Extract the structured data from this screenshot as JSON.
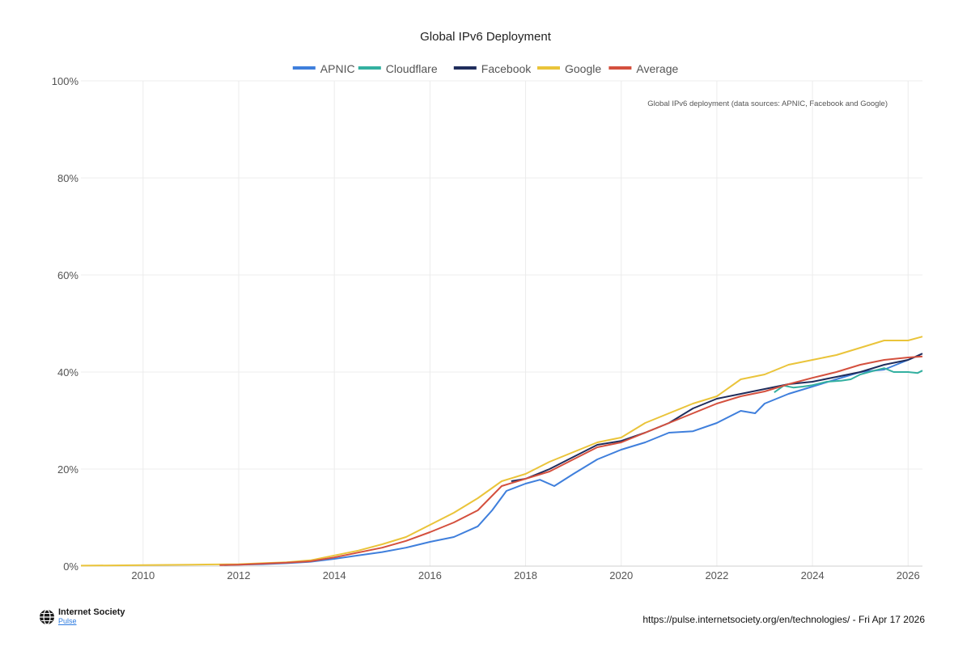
{
  "chart_data": {
    "type": "line",
    "title": "Global IPv6 Deployment",
    "annotation": "Global IPv6 deployment (data sources: APNIC, Facebook and Google)",
    "xlabel": "",
    "ylabel": "",
    "xlim": [
      2008.7,
      2026.3
    ],
    "ylim": [
      0,
      100
    ],
    "yticks": [
      0,
      20,
      40,
      60,
      80,
      100
    ],
    "ytick_labels": [
      "0%",
      "20%",
      "40%",
      "60%",
      "80%",
      "100%"
    ],
    "xticks": [
      2010,
      2012,
      2014,
      2016,
      2018,
      2020,
      2022,
      2024,
      2026
    ],
    "xtick_labels": [
      "2010",
      "2012",
      "2014",
      "2016",
      "2018",
      "2020",
      "2022",
      "2024",
      "2026"
    ],
    "grid": true,
    "legend_position": "top-center",
    "series": [
      {
        "name": "APNIC",
        "color": "#3f7fdc",
        "points": [
          [
            2011.7,
            0.2
          ],
          [
            2012.0,
            0.3
          ],
          [
            2012.5,
            0.4
          ],
          [
            2013.0,
            0.6
          ],
          [
            2013.5,
            0.9
          ],
          [
            2014.0,
            1.5
          ],
          [
            2014.5,
            2.2
          ],
          [
            2015.0,
            2.9
          ],
          [
            2015.5,
            3.8
          ],
          [
            2016.0,
            5.0
          ],
          [
            2016.5,
            6.0
          ],
          [
            2017.0,
            8.2
          ],
          [
            2017.3,
            11.5
          ],
          [
            2017.6,
            15.5
          ],
          [
            2018.0,
            17.0
          ],
          [
            2018.3,
            17.8
          ],
          [
            2018.6,
            16.5
          ],
          [
            2019.0,
            19.0
          ],
          [
            2019.5,
            22.0
          ],
          [
            2020.0,
            24.0
          ],
          [
            2020.5,
            25.5
          ],
          [
            2021.0,
            27.5
          ],
          [
            2021.5,
            27.8
          ],
          [
            2022.0,
            29.5
          ],
          [
            2022.5,
            32.0
          ],
          [
            2022.8,
            31.5
          ],
          [
            2023.0,
            33.5
          ],
          [
            2023.5,
            35.5
          ],
          [
            2024.0,
            37.0
          ],
          [
            2024.5,
            38.5
          ],
          [
            2025.0,
            40.0
          ],
          [
            2025.5,
            40.5
          ],
          [
            2026.0,
            42.5
          ],
          [
            2026.25,
            43.5
          ]
        ]
      },
      {
        "name": "Cloudflare",
        "color": "#33b0a0",
        "points": [
          [
            2023.2,
            35.8
          ],
          [
            2023.4,
            37.2
          ],
          [
            2023.6,
            36.8
          ],
          [
            2023.8,
            37.0
          ],
          [
            2024.0,
            37.3
          ],
          [
            2024.3,
            38.0
          ],
          [
            2024.6,
            38.2
          ],
          [
            2024.8,
            38.5
          ],
          [
            2025.0,
            39.5
          ],
          [
            2025.3,
            40.3
          ],
          [
            2025.5,
            40.8
          ],
          [
            2025.7,
            40.0
          ],
          [
            2026.0,
            40.0
          ],
          [
            2026.2,
            39.8
          ],
          [
            2026.3,
            40.3
          ]
        ]
      },
      {
        "name": "Facebook",
        "color": "#1f2d5c",
        "points": [
          [
            2017.7,
            17.5
          ],
          [
            2018.0,
            18.0
          ],
          [
            2018.5,
            20.0
          ],
          [
            2019.0,
            22.5
          ],
          [
            2019.5,
            25.0
          ],
          [
            2020.0,
            25.8
          ],
          [
            2020.5,
            27.5
          ],
          [
            2021.0,
            29.5
          ],
          [
            2021.5,
            32.5
          ],
          [
            2022.0,
            34.5
          ],
          [
            2022.5,
            35.5
          ],
          [
            2023.0,
            36.5
          ],
          [
            2023.5,
            37.5
          ],
          [
            2024.0,
            38.0
          ],
          [
            2024.5,
            39.0
          ],
          [
            2025.0,
            40.0
          ],
          [
            2025.5,
            41.5
          ],
          [
            2026.0,
            42.5
          ],
          [
            2026.3,
            43.8
          ]
        ]
      },
      {
        "name": "Google",
        "color": "#eac43a",
        "points": [
          [
            2008.7,
            0.1
          ],
          [
            2010.0,
            0.2
          ],
          [
            2011.0,
            0.3
          ],
          [
            2012.0,
            0.4
          ],
          [
            2012.5,
            0.6
          ],
          [
            2013.0,
            0.8
          ],
          [
            2013.5,
            1.2
          ],
          [
            2014.0,
            2.2
          ],
          [
            2014.5,
            3.2
          ],
          [
            2015.0,
            4.5
          ],
          [
            2015.5,
            6.0
          ],
          [
            2016.0,
            8.5
          ],
          [
            2016.5,
            11.0
          ],
          [
            2017.0,
            14.0
          ],
          [
            2017.5,
            17.5
          ],
          [
            2018.0,
            19.0
          ],
          [
            2018.5,
            21.5
          ],
          [
            2019.0,
            23.5
          ],
          [
            2019.5,
            25.5
          ],
          [
            2020.0,
            26.5
          ],
          [
            2020.5,
            29.5
          ],
          [
            2021.0,
            31.5
          ],
          [
            2021.5,
            33.5
          ],
          [
            2022.0,
            35.0
          ],
          [
            2022.5,
            38.5
          ],
          [
            2023.0,
            39.5
          ],
          [
            2023.5,
            41.5
          ],
          [
            2024.0,
            42.5
          ],
          [
            2024.5,
            43.5
          ],
          [
            2025.0,
            45.0
          ],
          [
            2025.5,
            46.5
          ],
          [
            2026.0,
            46.5
          ],
          [
            2026.3,
            47.3
          ]
        ]
      },
      {
        "name": "Average",
        "color": "#d4503e",
        "points": [
          [
            2011.6,
            0.2
          ],
          [
            2012.0,
            0.3
          ],
          [
            2012.5,
            0.5
          ],
          [
            2013.0,
            0.7
          ],
          [
            2013.5,
            1.0
          ],
          [
            2014.0,
            1.8
          ],
          [
            2014.5,
            2.8
          ],
          [
            2015.0,
            3.8
          ],
          [
            2015.5,
            5.2
          ],
          [
            2016.0,
            7.0
          ],
          [
            2016.5,
            9.0
          ],
          [
            2017.0,
            11.5
          ],
          [
            2017.5,
            16.5
          ],
          [
            2018.0,
            18.0
          ],
          [
            2018.5,
            19.5
          ],
          [
            2019.0,
            22.0
          ],
          [
            2019.5,
            24.5
          ],
          [
            2020.0,
            25.5
          ],
          [
            2020.5,
            27.5
          ],
          [
            2021.0,
            29.5
          ],
          [
            2021.5,
            31.5
          ],
          [
            2022.0,
            33.5
          ],
          [
            2022.5,
            35.0
          ],
          [
            2023.0,
            36.0
          ],
          [
            2023.5,
            37.5
          ],
          [
            2024.0,
            38.8
          ],
          [
            2024.5,
            40.0
          ],
          [
            2025.0,
            41.5
          ],
          [
            2025.5,
            42.5
          ],
          [
            2026.0,
            43.0
          ],
          [
            2026.3,
            43.2
          ]
        ]
      }
    ]
  },
  "footer": {
    "logo_name": "Internet Society",
    "logo_sub": "Pulse",
    "url_text": "https://pulse.internetsociety.org/en/technologies/ - Fri Apr 17 2026"
  }
}
